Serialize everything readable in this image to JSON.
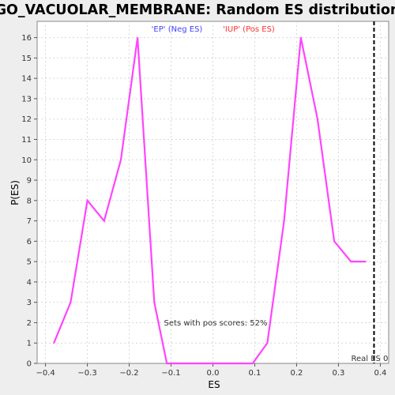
{
  "chart_data": {
    "type": "line",
    "title": "GO_VACUOLAR_MEMBRANE: Random ES distribution",
    "xlabel": "ES",
    "ylabel": "P(ES)",
    "xlim": [
      -0.42,
      0.42
    ],
    "ylim": [
      0,
      16.8
    ],
    "xticks": [
      -0.4,
      -0.3,
      -0.2,
      -0.1,
      0.0,
      0.1,
      0.2,
      0.3,
      0.4
    ],
    "xtick_labels": [
      "−0.4",
      "−0.3",
      "−0.2",
      "−0.1",
      "0.0",
      "0.1",
      "0.2",
      "0.3",
      "0.4"
    ],
    "yticks": [
      0,
      1,
      2,
      3,
      4,
      5,
      6,
      7,
      8,
      9,
      10,
      11,
      12,
      13,
      14,
      15,
      16
    ],
    "grid": true,
    "series": [
      {
        "color": "#ff44ff",
        "x": [
          -0.38,
          -0.34,
          -0.3,
          -0.26,
          -0.22,
          -0.18,
          -0.14,
          -0.11,
          -0.02,
          0.06,
          0.095,
          0.13,
          0.17,
          0.21,
          0.25,
          0.29,
          0.33,
          0.365
        ],
        "y": [
          1,
          3,
          8,
          7,
          10,
          16,
          3,
          0,
          0,
          0,
          0,
          1,
          7,
          16,
          12,
          6,
          5,
          5
        ]
      }
    ],
    "legend": {
      "placement": "top",
      "entries": [
        {
          "label": "'EP' (Neg ES)",
          "color": "#4040ff"
        },
        {
          "label": "'IUP' (Pos ES)",
          "color": "#ff3030"
        }
      ]
    },
    "annotation": "Sets with pos scores: 52%",
    "real_es": {
      "x": 0.385,
      "label": "Real ES 0"
    }
  }
}
